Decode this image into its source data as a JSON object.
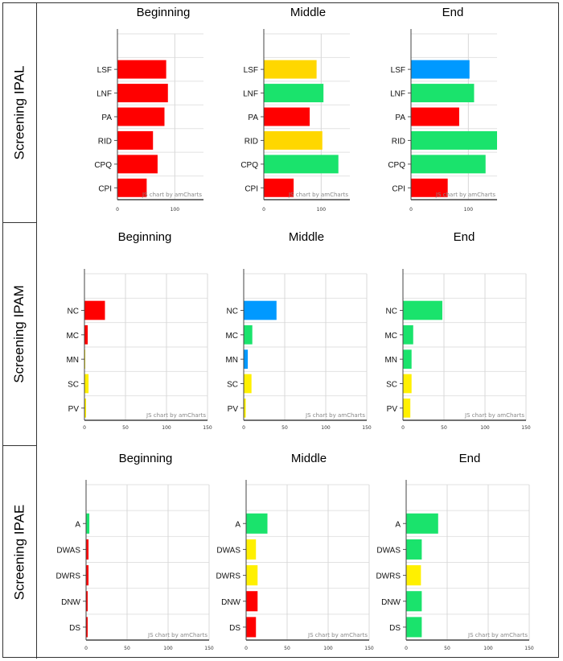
{
  "rows": [
    {
      "label": "Screening IPAL"
    },
    {
      "label": "Screening IPAM"
    },
    {
      "label": "Screening IPAE"
    }
  ],
  "colors": {
    "red": "#ff0000",
    "gold": "#ffd700",
    "green": "#1ae36c",
    "blue": "#0099ff",
    "yellow": "#fff000"
  },
  "chart_data": [
    {
      "type": "bar",
      "orientation": "horizontal",
      "title": "Beginning",
      "row": "Screening IPAL",
      "watermark": "JS chart by amCharts",
      "xlim": [
        0,
        150
      ],
      "xticks": [
        0,
        100
      ],
      "categories": [
        "LSF",
        "LNF",
        "PA",
        "RID",
        "CPQ",
        "CPI"
      ],
      "values": [
        85,
        88,
        82,
        62,
        70,
        51
      ],
      "colors": [
        "#ff0000",
        "#ff0000",
        "#ff0000",
        "#ff0000",
        "#ff0000",
        "#ff0000"
      ]
    },
    {
      "type": "bar",
      "orientation": "horizontal",
      "title": "Middle",
      "row": "Screening IPAL",
      "watermark": "JS chart by amCharts",
      "xlim": [
        0,
        150
      ],
      "xticks": [
        0,
        100
      ],
      "categories": [
        "LSF",
        "LNF",
        "PA",
        "RID",
        "CPQ",
        "CPI"
      ],
      "values": [
        92,
        104,
        80,
        102,
        130,
        52
      ],
      "colors": [
        "#ffd700",
        "#1ae36c",
        "#ff0000",
        "#ffd700",
        "#1ae36c",
        "#ff0000"
      ]
    },
    {
      "type": "bar",
      "orientation": "horizontal",
      "title": "End",
      "row": "Screening IPAL",
      "watermark": "JS chart by amCharts",
      "xlim": [
        0,
        150
      ],
      "xticks": [
        0,
        100
      ],
      "categories": [
        "LSF",
        "LNF",
        "PA",
        "RID",
        "CPQ",
        "CPI"
      ],
      "values": [
        102,
        110,
        84,
        150,
        130,
        64
      ],
      "colors": [
        "#0099ff",
        "#1ae36c",
        "#ff0000",
        "#1ae36c",
        "#1ae36c",
        "#ff0000"
      ]
    },
    {
      "type": "bar",
      "orientation": "horizontal",
      "title": "Beginning",
      "row": "Screening IPAM",
      "watermark": "JS chart by amCharts",
      "xlim": [
        0,
        150
      ],
      "xticks": [
        0,
        50,
        100,
        150
      ],
      "categories": [
        "NC",
        "MC",
        "MN",
        "SC",
        "PV"
      ],
      "values": [
        25,
        4,
        1,
        5,
        2
      ],
      "colors": [
        "#ff0000",
        "#ff0000",
        "#fff000",
        "#fff000",
        "#fff000"
      ]
    },
    {
      "type": "bar",
      "orientation": "horizontal",
      "title": "Middle",
      "row": "Screening IPAM",
      "watermark": "JS chart by amCharts",
      "xlim": [
        0,
        150
      ],
      "xticks": [
        0,
        50,
        100,
        150
      ],
      "categories": [
        "NC",
        "MC",
        "MN",
        "SC",
        "PV"
      ],
      "values": [
        40,
        10.5,
        5,
        9.5,
        2.5
      ],
      "colors": [
        "#0099ff",
        "#1ae36c",
        "#0099ff",
        "#fff000",
        "#fff000"
      ]
    },
    {
      "type": "bar",
      "orientation": "horizontal",
      "title": "End",
      "row": "Screening IPAM",
      "watermark": "JS chart by amCharts",
      "xlim": [
        0,
        150
      ],
      "xticks": [
        0,
        50,
        100,
        150
      ],
      "categories": [
        "NC",
        "MC",
        "MN",
        "SC",
        "PV"
      ],
      "values": [
        48,
        12.5,
        10.5,
        10.5,
        9
      ],
      "colors": [
        "#1ae36c",
        "#1ae36c",
        "#1ae36c",
        "#fff000",
        "#fff000"
      ]
    },
    {
      "type": "bar",
      "orientation": "horizontal",
      "title": "Beginning",
      "row": "Screening IPAE",
      "watermark": "JS chart by amCharts",
      "xlim": [
        0,
        150
      ],
      "xticks": [
        0,
        50,
        100,
        150
      ],
      "categories": [
        "A",
        "DWAS",
        "DWRS",
        "DNW",
        "DS"
      ],
      "values": [
        4,
        3,
        3,
        2,
        2
      ],
      "colors": [
        "#1ae36c",
        "#ff0000",
        "#ff0000",
        "#ff0000",
        "#ff0000"
      ]
    },
    {
      "type": "bar",
      "orientation": "horizontal",
      "title": "Middle",
      "row": "Screening IPAE",
      "watermark": "JS chart by amCharts",
      "xlim": [
        0,
        150
      ],
      "xticks": [
        0,
        50,
        100,
        150
      ],
      "categories": [
        "A",
        "DWAS",
        "DWRS",
        "DNW",
        "DS"
      ],
      "values": [
        26,
        12,
        14,
        14,
        12
      ],
      "colors": [
        "#1ae36c",
        "#fff000",
        "#fff000",
        "#ff0000",
        "#ff0000"
      ]
    },
    {
      "type": "bar",
      "orientation": "horizontal",
      "title": "End",
      "row": "Screening IPAE",
      "watermark": "JS chart by amCharts",
      "xlim": [
        0,
        150
      ],
      "xticks": [
        0,
        50,
        100,
        150
      ],
      "categories": [
        "A",
        "DWAS",
        "DWRS",
        "DNW",
        "DS"
      ],
      "values": [
        39,
        19,
        18,
        19,
        19
      ],
      "colors": [
        "#1ae36c",
        "#1ae36c",
        "#fff000",
        "#1ae36c",
        "#1ae36c"
      ]
    }
  ]
}
